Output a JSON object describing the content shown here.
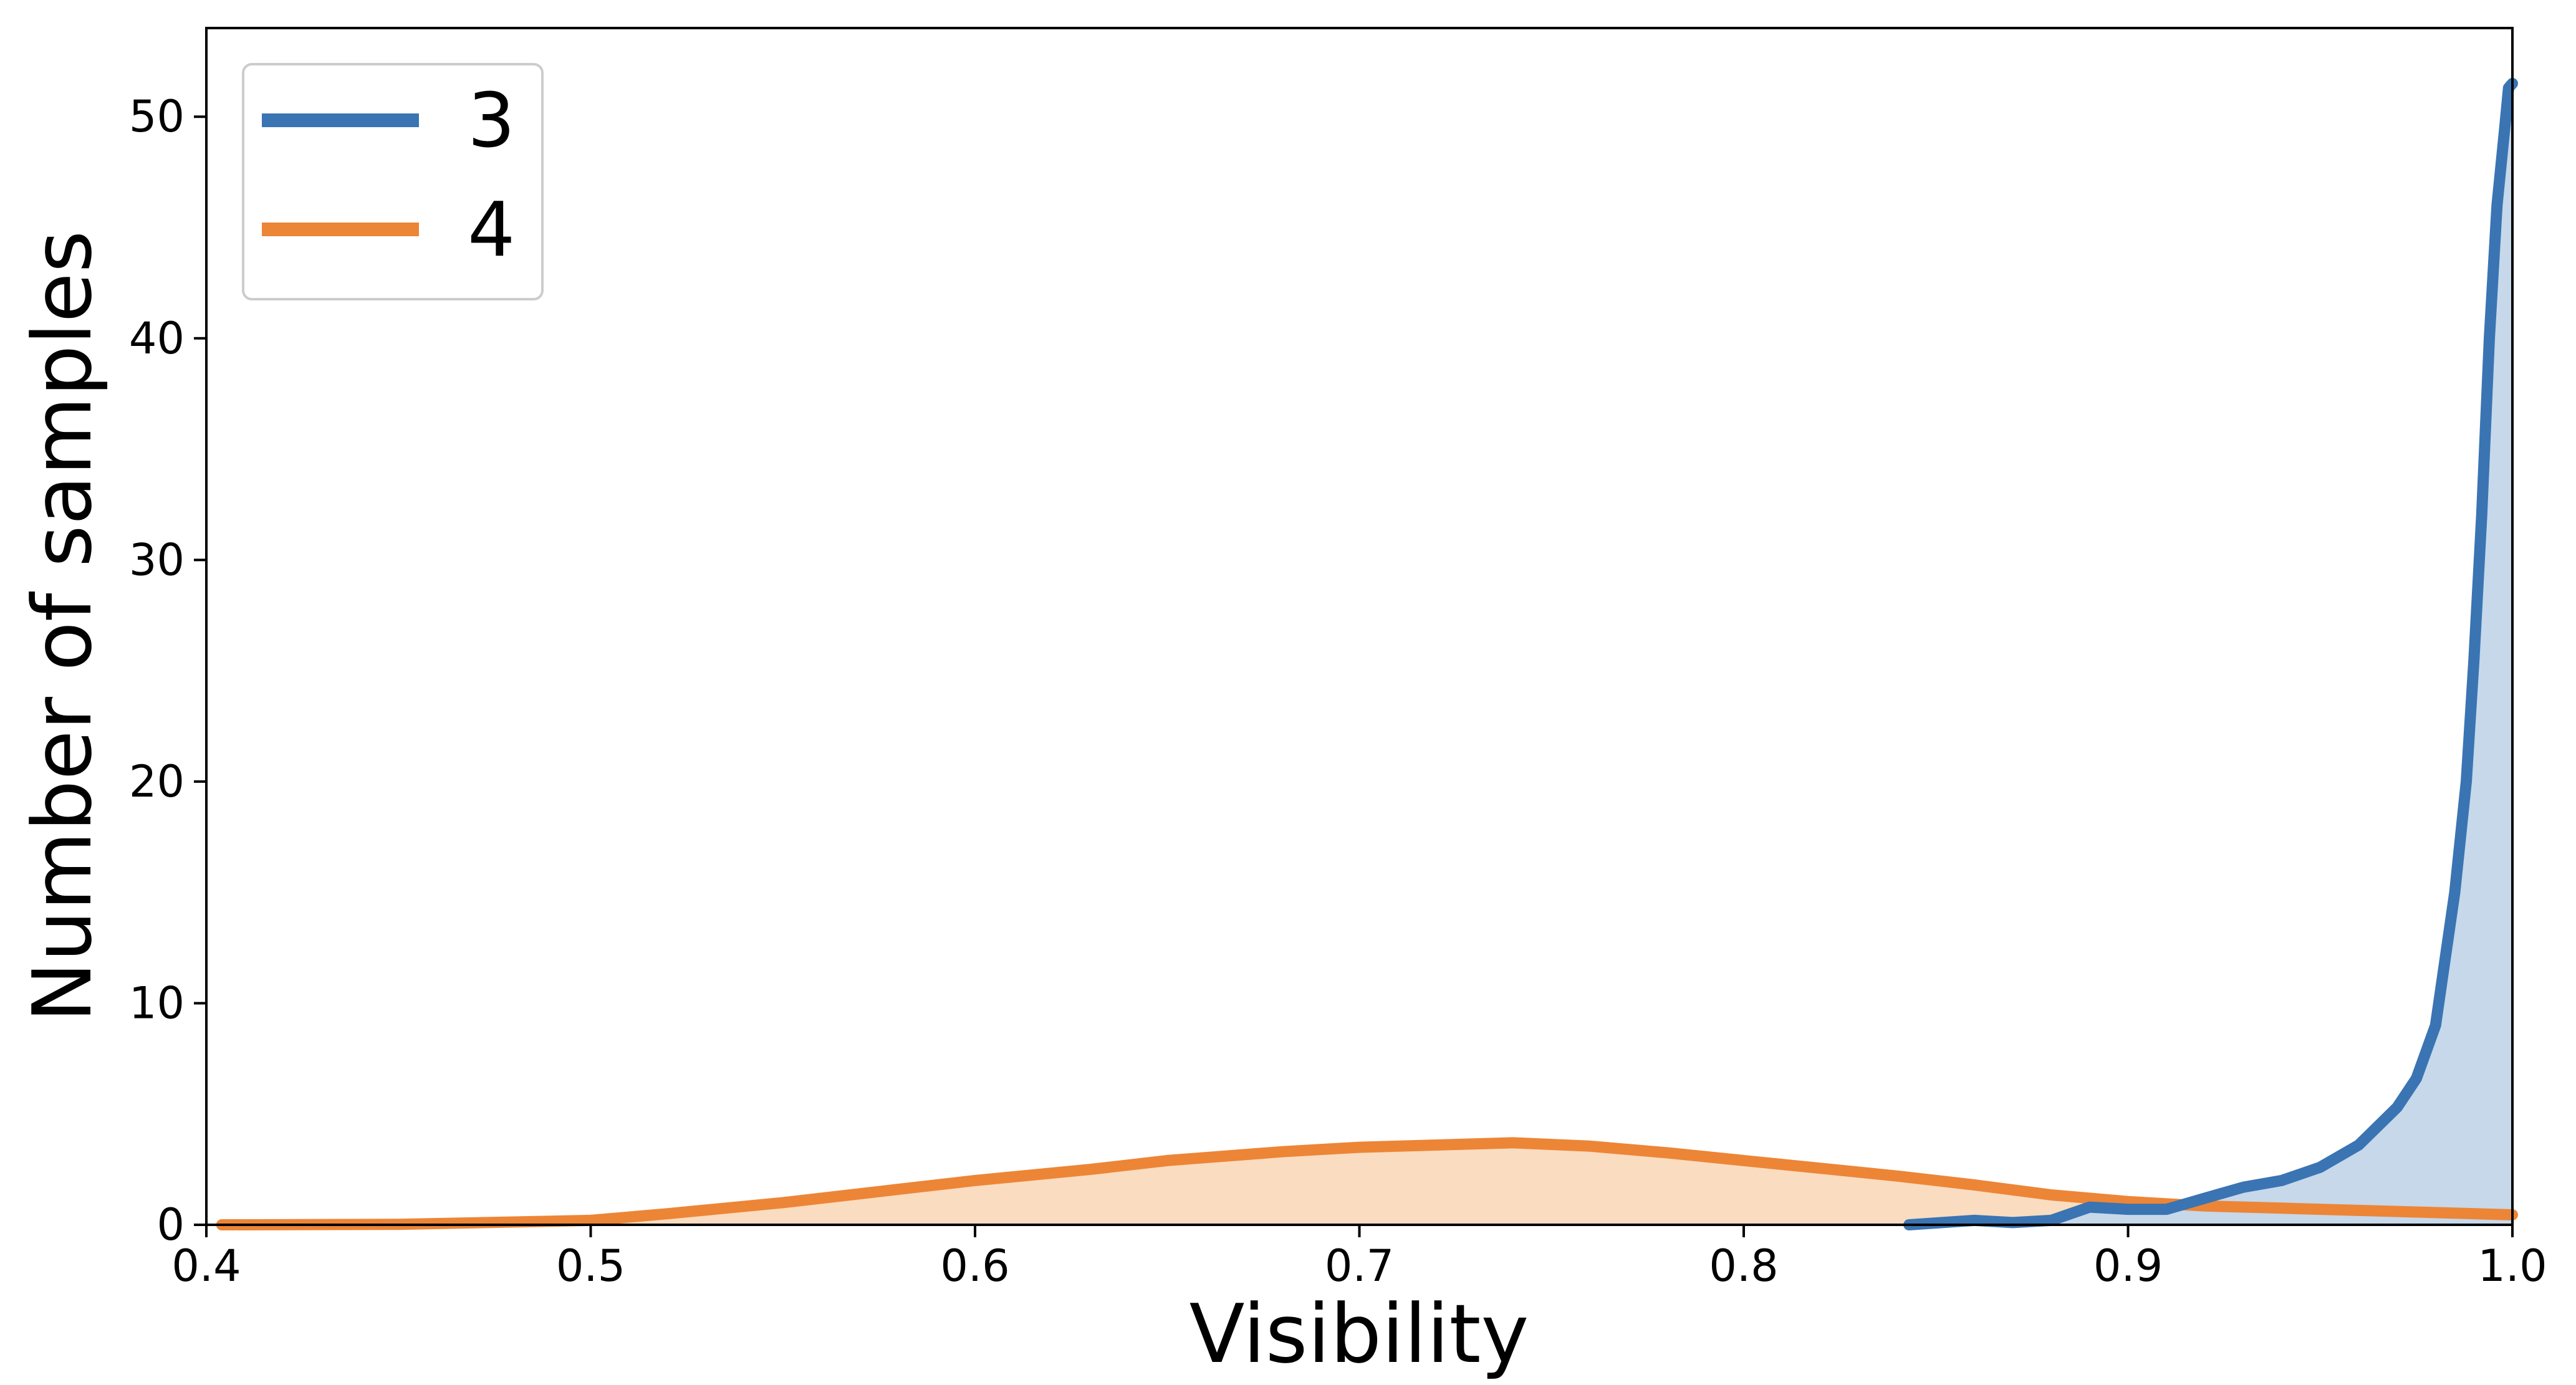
{
  "chart_data": {
    "type": "area",
    "title": "",
    "xlabel": "Visibility",
    "ylabel": "Number of samples",
    "xlim": [
      0.4,
      1.0
    ],
    "ylim": [
      0,
      54
    ],
    "xticks": [
      "0.4",
      "0.5",
      "0.6",
      "0.7",
      "0.8",
      "0.9",
      "1.0"
    ],
    "yticks": [
      "0",
      "10",
      "20",
      "30",
      "40",
      "50"
    ],
    "grid": false,
    "legend_position": "top-left",
    "series": [
      {
        "name": "3",
        "color": "#3a74b3",
        "fill": "#c6d8ea",
        "x": [
          0.843,
          0.86,
          0.87,
          0.88,
          0.89,
          0.9,
          0.91,
          0.92,
          0.93,
          0.94,
          0.95,
          0.96,
          0.97,
          0.975,
          0.98,
          0.985,
          0.988,
          0.99,
          0.992,
          0.994,
          0.996,
          0.998,
          0.999,
          1.0
        ],
        "values": [
          0.0,
          0.2,
          0.1,
          0.2,
          0.8,
          0.7,
          0.7,
          1.2,
          1.7,
          2.0,
          2.6,
          3.6,
          5.3,
          6.6,
          9.0,
          15.0,
          20.0,
          25.5,
          32.0,
          40.0,
          46.0,
          49.5,
          51.3,
          51.5
        ]
      },
      {
        "name": "4",
        "color": "#ed8536",
        "fill": "#fadcc0",
        "x": [
          0.404,
          0.45,
          0.5,
          0.52,
          0.55,
          0.58,
          0.6,
          0.63,
          0.65,
          0.68,
          0.7,
          0.72,
          0.74,
          0.76,
          0.78,
          0.8,
          0.82,
          0.84,
          0.86,
          0.88,
          0.9,
          0.92,
          0.94,
          0.96,
          0.98,
          1.0
        ],
        "values": [
          0.0,
          0.02,
          0.2,
          0.5,
          1.0,
          1.6,
          2.0,
          2.5,
          2.9,
          3.3,
          3.5,
          3.6,
          3.7,
          3.55,
          3.25,
          2.9,
          2.55,
          2.2,
          1.8,
          1.35,
          1.05,
          0.85,
          0.75,
          0.65,
          0.55,
          0.45
        ]
      }
    ]
  }
}
